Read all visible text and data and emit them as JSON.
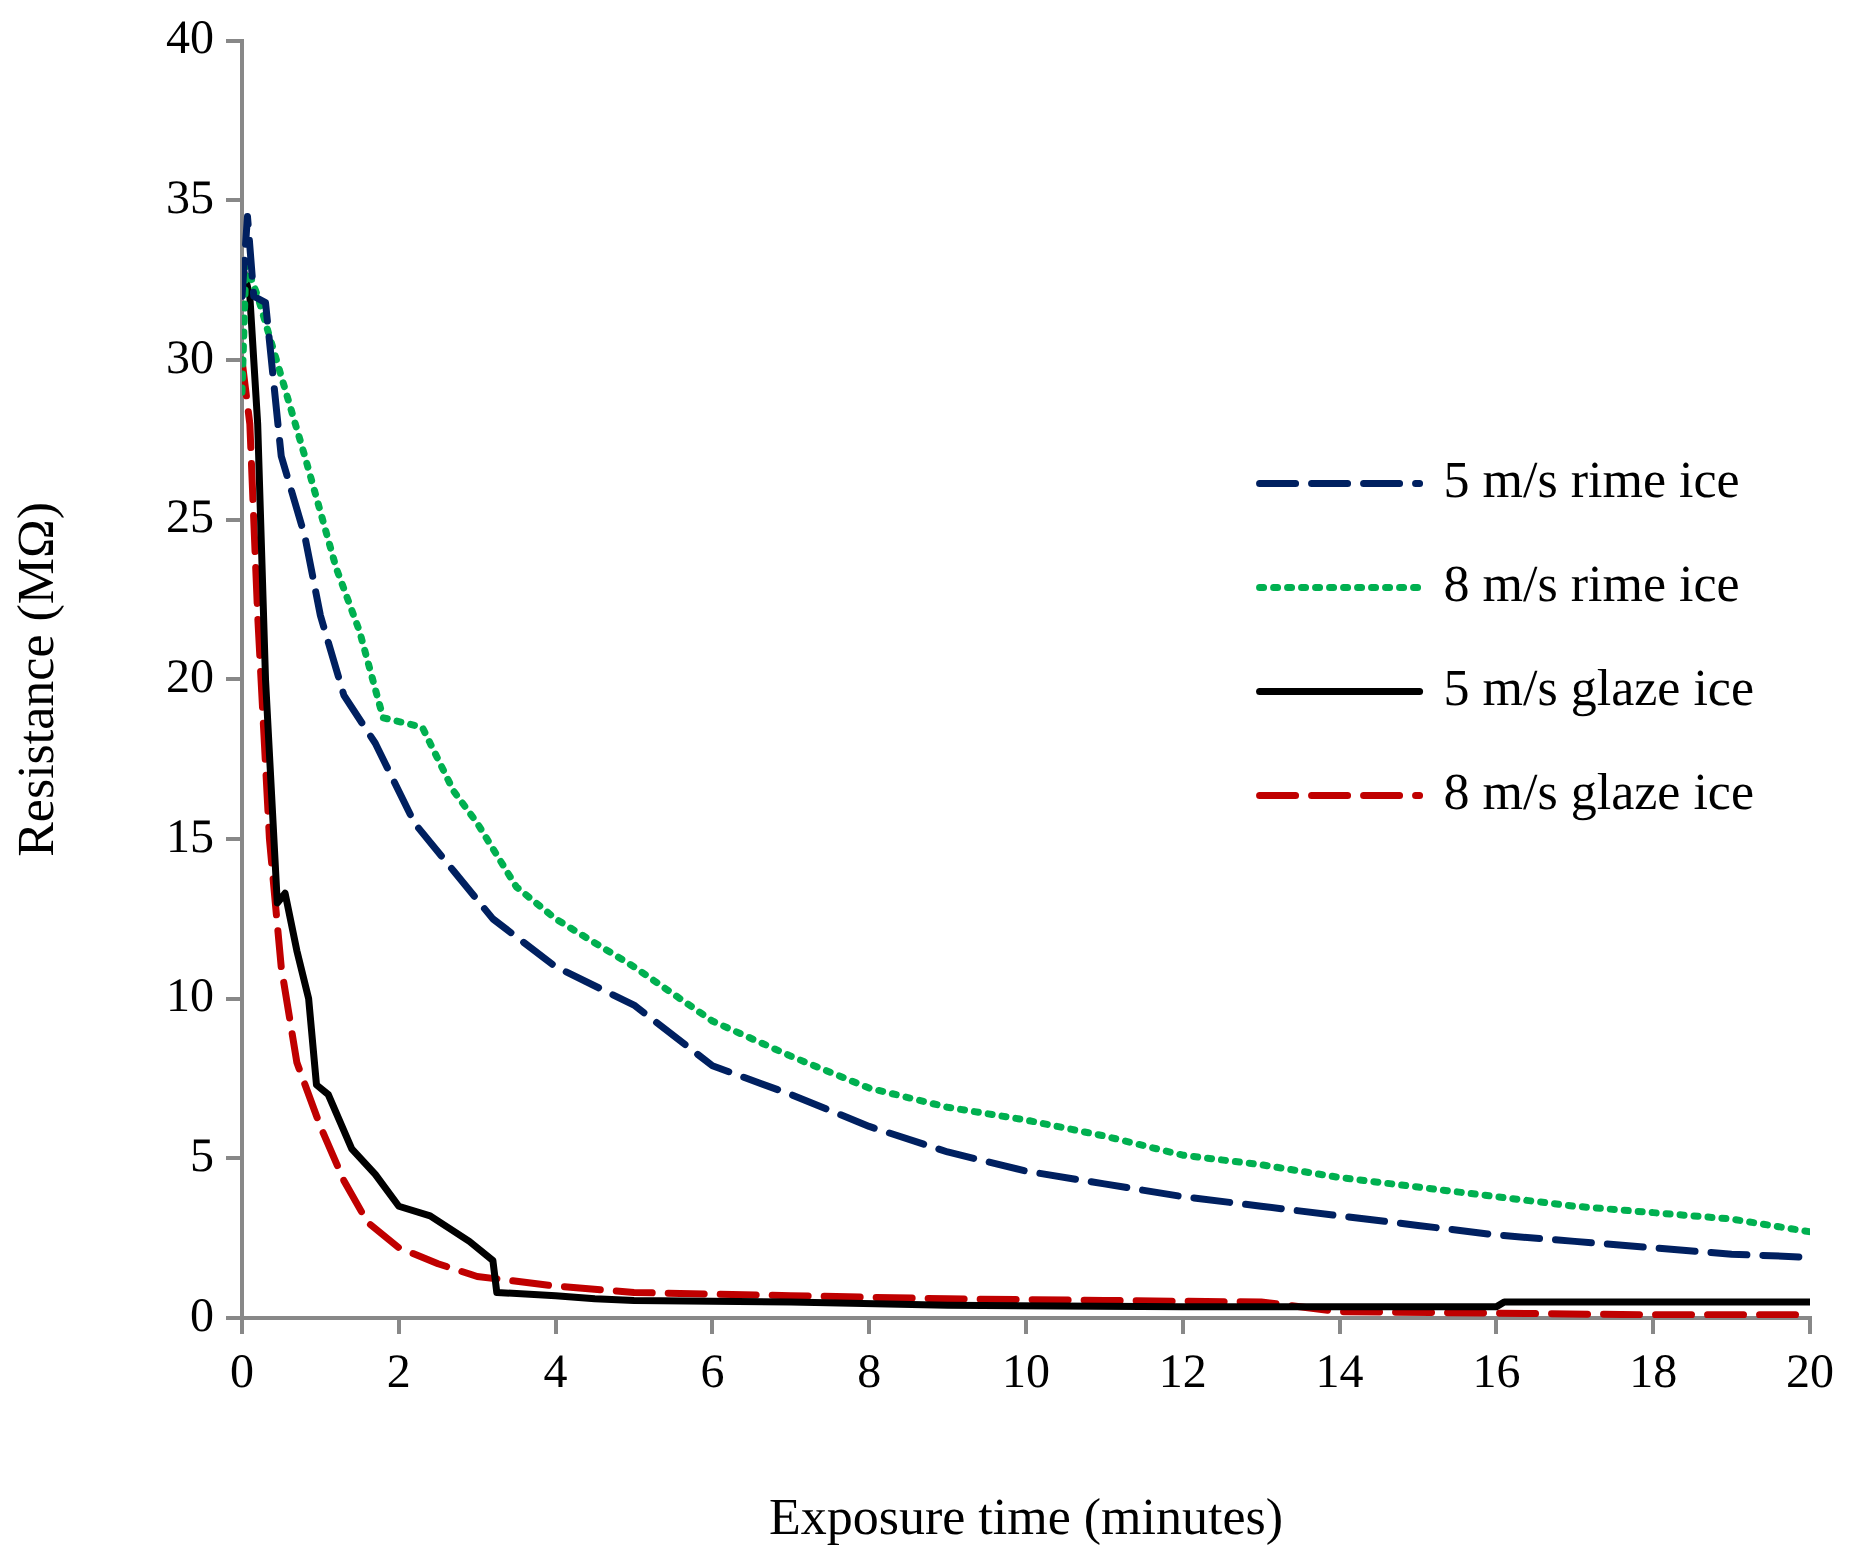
{
  "chart_data": {
    "type": "line",
    "xlabel": "Exposure time (minutes)",
    "ylabel": "Resistance (MΩ)",
    "xlim": [
      0,
      20
    ],
    "xticks": [
      0,
      2,
      4,
      6,
      8,
      10,
      12,
      14,
      16,
      18,
      20
    ],
    "ylim": [
      0,
      40
    ],
    "yticks": [
      0,
      5,
      10,
      15,
      20,
      25,
      30,
      35,
      40
    ],
    "grid": false,
    "legend": "right",
    "marker": "none",
    "series": [
      {
        "name": "5 m/s rime ice",
        "color": "#002060",
        "line_style": "dashed",
        "x": [
          0,
          0.07,
          0.15,
          0.3,
          0.5,
          0.8,
          1.0,
          1.3,
          1.7,
          2.2,
          2.7,
          3.2,
          4,
          5,
          6,
          7,
          8,
          9,
          10,
          11,
          12,
          13,
          14,
          15,
          16,
          17,
          18,
          19,
          20
        ],
        "values": [
          32,
          34.5,
          32,
          31.8,
          27,
          24.5,
          22,
          19.5,
          18,
          15.5,
          14,
          12.5,
          11,
          9.8,
          7.9,
          7,
          6,
          5.2,
          4.6,
          4.2,
          3.8,
          3.5,
          3.2,
          2.9,
          2.6,
          2.4,
          2.2,
          2,
          1.9
        ]
      },
      {
        "name": "8 m/s rime ice",
        "color": "#00b050",
        "line_style": "dotted",
        "x": [
          0,
          0.05,
          0.2,
          0.5,
          0.8,
          1.2,
          1.5,
          1.8,
          2.3,
          2.7,
          3,
          3.5,
          4,
          5,
          6,
          7,
          8,
          9,
          10,
          11,
          12,
          13,
          14,
          15,
          16,
          17,
          18,
          19,
          20
        ],
        "values": [
          29,
          33,
          32,
          29.5,
          27,
          23.5,
          21.5,
          18.8,
          18.5,
          16.5,
          15.5,
          13.5,
          12.5,
          11,
          9.3,
          8.2,
          7.2,
          6.6,
          6.2,
          5.7,
          5.1,
          4.8,
          4.4,
          4.1,
          3.8,
          3.5,
          3.3,
          3.1,
          2.7
        ]
      },
      {
        "name": "5 m/s glaze ice",
        "color": "#000000",
        "line_style": "solid",
        "x": [
          0,
          0.1,
          0.2,
          0.3,
          0.45,
          0.55,
          0.7,
          0.85,
          0.95,
          1.1,
          1.4,
          1.7,
          2,
          2.4,
          2.9,
          3.2,
          3.25,
          4,
          4.5,
          5,
          7,
          9,
          12,
          16,
          16.1,
          20
        ],
        "values": [
          33,
          32,
          28,
          20,
          13,
          13.3,
          11.5,
          10,
          7.3,
          7,
          5.3,
          4.5,
          3.5,
          3.2,
          2.4,
          1.8,
          0.8,
          0.7,
          0.6,
          0.55,
          0.5,
          0.4,
          0.35,
          0.35,
          0.5,
          0.5
        ]
      },
      {
        "name": "8 m/s glaze ice",
        "color": "#c00000",
        "line_style": "dashed",
        "x": [
          0,
          0.1,
          0.2,
          0.35,
          0.5,
          0.7,
          1,
          1.3,
          1.6,
          2,
          2.5,
          3,
          4,
          5,
          7,
          9,
          11,
          13,
          14,
          16,
          18,
          20
        ],
        "values": [
          30,
          28,
          22,
          15,
          11,
          8,
          6,
          4.3,
          3,
          2.2,
          1.7,
          1.3,
          1,
          0.8,
          0.7,
          0.6,
          0.55,
          0.5,
          0.2,
          0.15,
          0.1,
          0.1
        ]
      }
    ]
  }
}
